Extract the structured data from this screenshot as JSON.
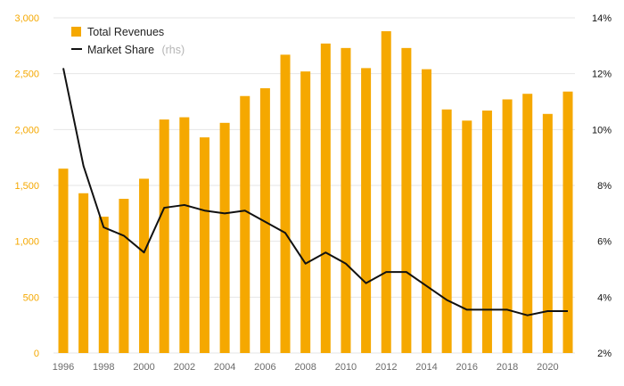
{
  "chart_data": {
    "type": "bar",
    "title": "",
    "xlabel": "",
    "ylabel": "",
    "x": [
      1996,
      1997,
      1998,
      1999,
      2000,
      2001,
      2002,
      2003,
      2004,
      2005,
      2006,
      2007,
      2008,
      2009,
      2010,
      2011,
      2012,
      2013,
      2014,
      2015,
      2016,
      2017,
      2018,
      2019,
      2020,
      2021
    ],
    "x_tick_labels": [
      "1996",
      "1998",
      "2000",
      "2002",
      "2004",
      "2006",
      "2008",
      "2010",
      "2012",
      "2014",
      "2016",
      "2018",
      "2020"
    ],
    "ylim_left": [
      0,
      3000
    ],
    "left_tick_labels": [
      "0",
      "500",
      "1,000",
      "1,500",
      "2,000",
      "2,500",
      "3,000"
    ],
    "ylim_right": [
      2,
      14
    ],
    "right_tick_labels": [
      "2%",
      "4%",
      "6%",
      "8%",
      "10%",
      "12%",
      "14%"
    ],
    "grid": true,
    "legend_position": "top-left",
    "series": [
      {
        "name": "Total Revenues",
        "type": "bar",
        "axis": "left",
        "color": "#f5a800",
        "values": [
          1650,
          1430,
          1220,
          1380,
          1560,
          2090,
          2110,
          1930,
          2060,
          2300,
          2370,
          2670,
          2520,
          2770,
          2730,
          2550,
          2880,
          2730,
          2540,
          2180,
          2080,
          2170,
          2270,
          2320,
          2140,
          2340
        ]
      },
      {
        "name": "Market Share",
        "name_note": "(rhs)",
        "type": "line",
        "axis": "right",
        "color": "#111111",
        "values": [
          12.2,
          8.7,
          6.5,
          6.2,
          5.6,
          7.2,
          7.3,
          7.1,
          7.0,
          7.1,
          6.7,
          6.3,
          5.2,
          5.6,
          5.2,
          4.5,
          4.9,
          4.9,
          4.4,
          3.9,
          3.55,
          3.55,
          3.55,
          3.35,
          3.5,
          3.5
        ]
      }
    ]
  }
}
